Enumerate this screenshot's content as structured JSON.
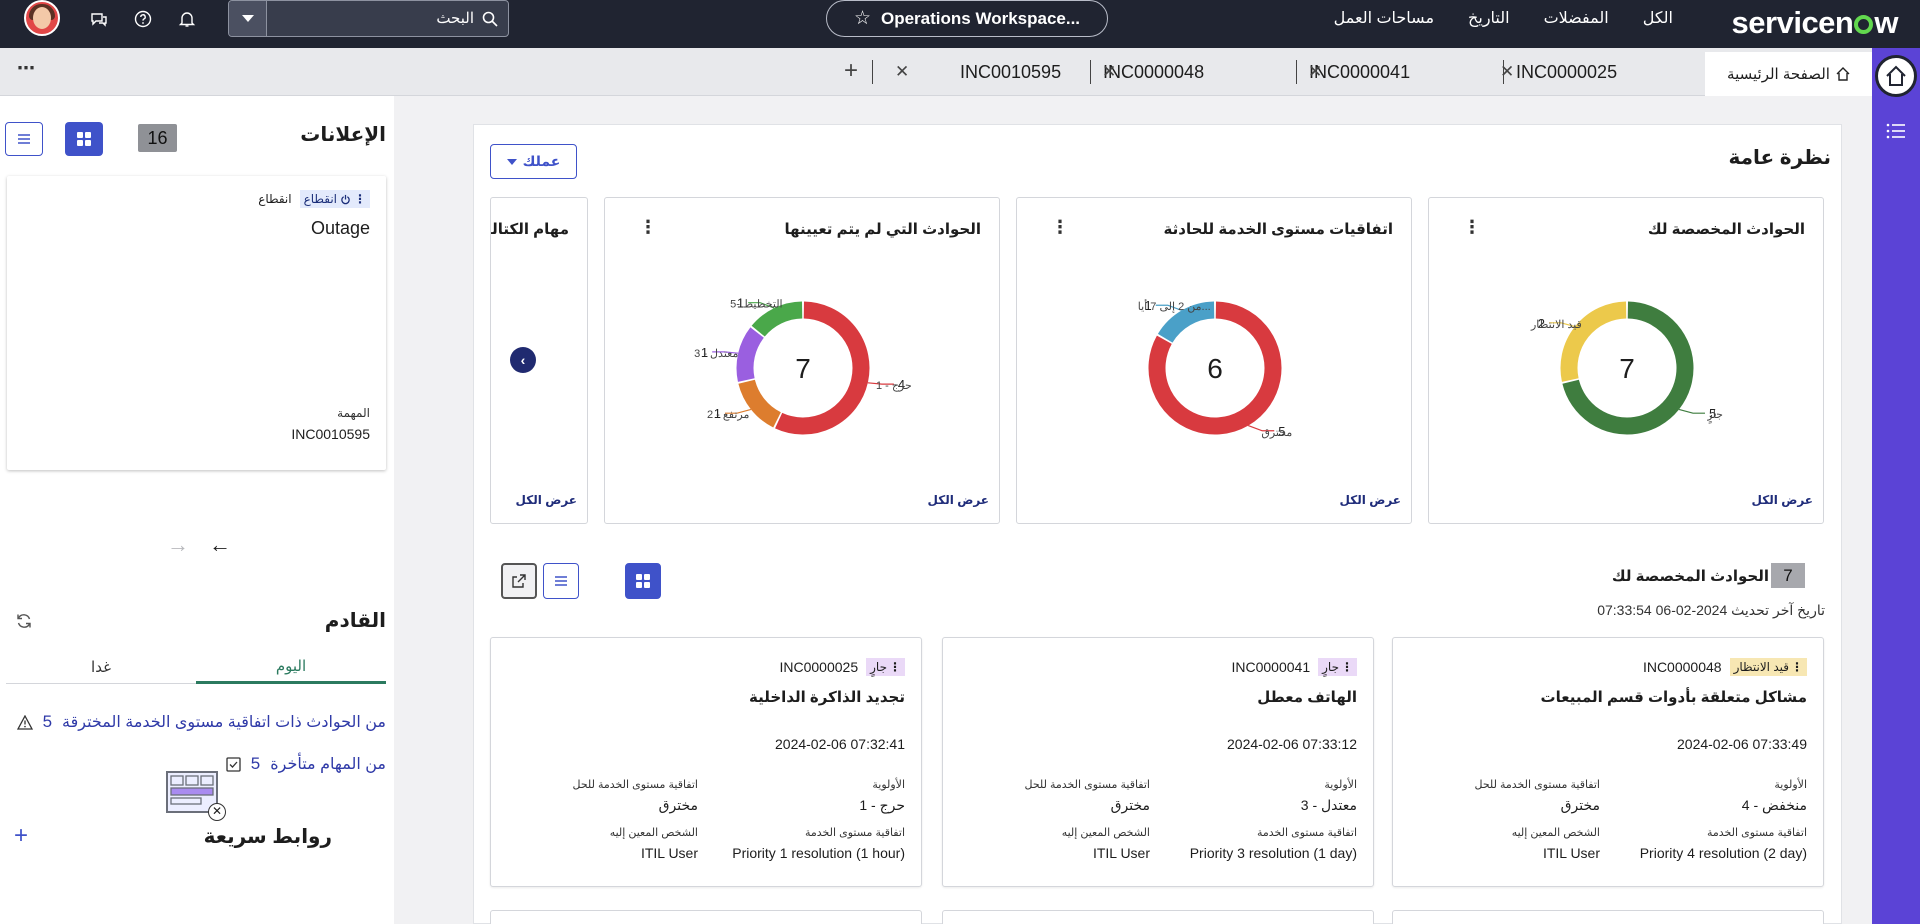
{
  "header": {
    "logo_left": "servicen",
    "logo_right": "w",
    "nav": [
      "الكل",
      "المفضلات",
      "التاريخ",
      "مساحات العمل"
    ],
    "workspace": "Operations Workspace...",
    "search_placeholder": "البحث"
  },
  "tabs": {
    "home": "الصفحة الرئيسية",
    "items": [
      "INC0000025",
      "INC0000041",
      "INC0000048",
      "INC0010595"
    ]
  },
  "announcements": {
    "title": "الإعلانات",
    "count": "16",
    "card": {
      "tag": "انقطاع",
      "type": "انقطاع",
      "heading": "Outage",
      "task_label": "المهمة",
      "task_value": "INC0010595"
    }
  },
  "upcoming": {
    "title": "القادم",
    "today": "اليوم",
    "tomorrow": "غدا",
    "items": [
      {
        "num": "5",
        "text": "من الحوادث ذات اتفاقية مستوى الخدمة المخترقة"
      },
      {
        "num": "5",
        "text": "من المهام متأخرة"
      }
    ]
  },
  "quick_links": {
    "title": "روابط سريعة"
  },
  "overview": {
    "title": "نظرة عامة",
    "work_button": "عملك",
    "view_all": "عرض الكل",
    "charts": [
      {
        "title": "الحوادث المخصصة لك",
        "total": "7",
        "segments": [
          {
            "label": "جارٍ",
            "value": 5,
            "color": "#3f7d3f"
          },
          {
            "label": "قيد الانتظار",
            "value": 2,
            "color": "#ecc94b"
          }
        ]
      },
      {
        "title": "اتفاقيات مستوى الخدمة للحادثة",
        "total": "6",
        "segments": [
          {
            "label": "مخترق",
            "value": 5,
            "color": "#d83a3f"
          },
          {
            "label": "...من 2 إلى 7 أيا",
            "value": 1,
            "color": "#4aa0c8"
          }
        ]
      },
      {
        "title": "الحوادث التي لم يتم تعيينها",
        "total": "7",
        "segments": [
          {
            "label": "حرج - 1",
            "value": 4,
            "color": "#d83a3f"
          },
          {
            "label": "مرتفع - 2",
            "value": 1,
            "color": "#dd7d2e"
          },
          {
            "label": "معتدل - 3",
            "value": 1,
            "color": "#9a5fe0"
          },
          {
            "label": "التخطيط -5",
            "value": 1,
            "color": "#4aa84a"
          }
        ]
      },
      {
        "title": "مهام الكتالوج",
        "total": "",
        "segments": []
      }
    ]
  },
  "assigned": {
    "title": "الحوادث المخصصة لك",
    "count": "7",
    "last_updated": "تاريخ آخر تحديث 2024-02-06 07:33:54",
    "field_labels": {
      "priority": "الأولوية",
      "sla_resolve": "اتفاقية مستوى الخدمة للحل",
      "sla": "اتفاقية مستوى الخدمة",
      "assignee": "الشخص المعين إليه"
    },
    "cards": [
      {
        "state": "قيد الانتظار",
        "state_bg": "#f7e7b3",
        "number": "INC0000048",
        "title": "مشاكل متعلقة بأدوات قسم المبيعات",
        "time": "2024-02-06 07:33:49",
        "priority": "4 - منخفض",
        "sla_resolve": "مخترق",
        "sla": "Priority 4 resolution (2 day)",
        "assignee": "ITIL User"
      },
      {
        "state": "جارٍ",
        "state_bg": "#ead9f7",
        "number": "INC0000041",
        "title": "الهاتف معطل",
        "time": "2024-02-06 07:33:12",
        "priority": "3 - معتدل",
        "sla_resolve": "مخترق",
        "sla": "Priority 3 resolution (1 day)",
        "assignee": "ITIL User"
      },
      {
        "state": "جارٍ",
        "state_bg": "#ead9f7",
        "number": "INC0000025",
        "title": "تجديد الذاكرة الداخلية",
        "time": "2024-02-06 07:32:41",
        "priority": "1 - حرج",
        "sla_resolve": "مخترق",
        "sla": "Priority 1 resolution (1 hour)",
        "assignee": "ITIL User"
      }
    ]
  }
}
